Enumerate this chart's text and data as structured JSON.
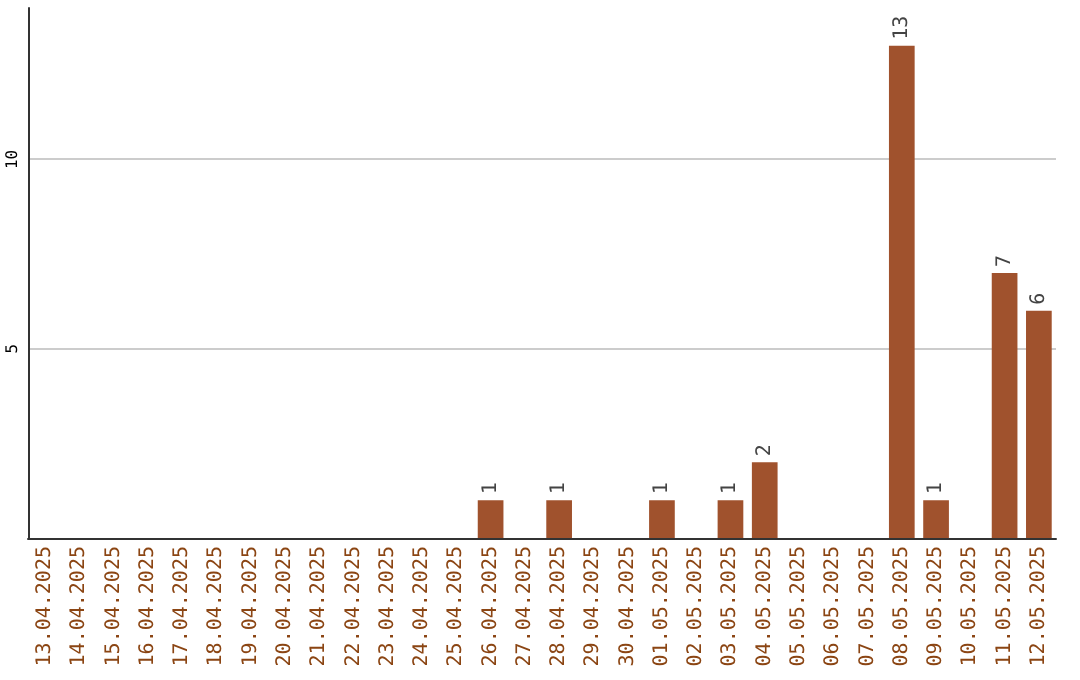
{
  "chart_data": {
    "type": "bar",
    "categories": [
      "13.04.2025",
      "14.04.2025",
      "15.04.2025",
      "16.04.2025",
      "17.04.2025",
      "18.04.2025",
      "19.04.2025",
      "20.04.2025",
      "21.04.2025",
      "22.04.2025",
      "23.04.2025",
      "24.04.2025",
      "25.04.2025",
      "26.04.2025",
      "27.04.2025",
      "28.04.2025",
      "29.04.2025",
      "30.04.2025",
      "01.05.2025",
      "02.05.2025",
      "03.05.2025",
      "04.05.2025",
      "05.05.2025",
      "06.05.2025",
      "07.05.2025",
      "08.05.2025",
      "09.05.2025",
      "10.05.2025",
      "11.05.2025",
      "12.05.2025"
    ],
    "values": [
      0,
      0,
      0,
      0,
      0,
      0,
      0,
      0,
      0,
      0,
      0,
      0,
      0,
      1,
      0,
      1,
      0,
      0,
      1,
      0,
      1,
      2,
      0,
      0,
      0,
      13,
      1,
      0,
      7,
      6
    ],
    "value_labels": [
      null,
      null,
      null,
      null,
      null,
      null,
      null,
      null,
      null,
      null,
      null,
      null,
      null,
      "1",
      null,
      "1",
      null,
      null,
      "1",
      null,
      "1",
      "2",
      null,
      null,
      null,
      "13",
      "1",
      null,
      "7",
      "6"
    ],
    "color": "#a0522d",
    "ylim": [
      0,
      14
    ],
    "yticks": [
      5,
      10
    ],
    "grid": "y"
  }
}
